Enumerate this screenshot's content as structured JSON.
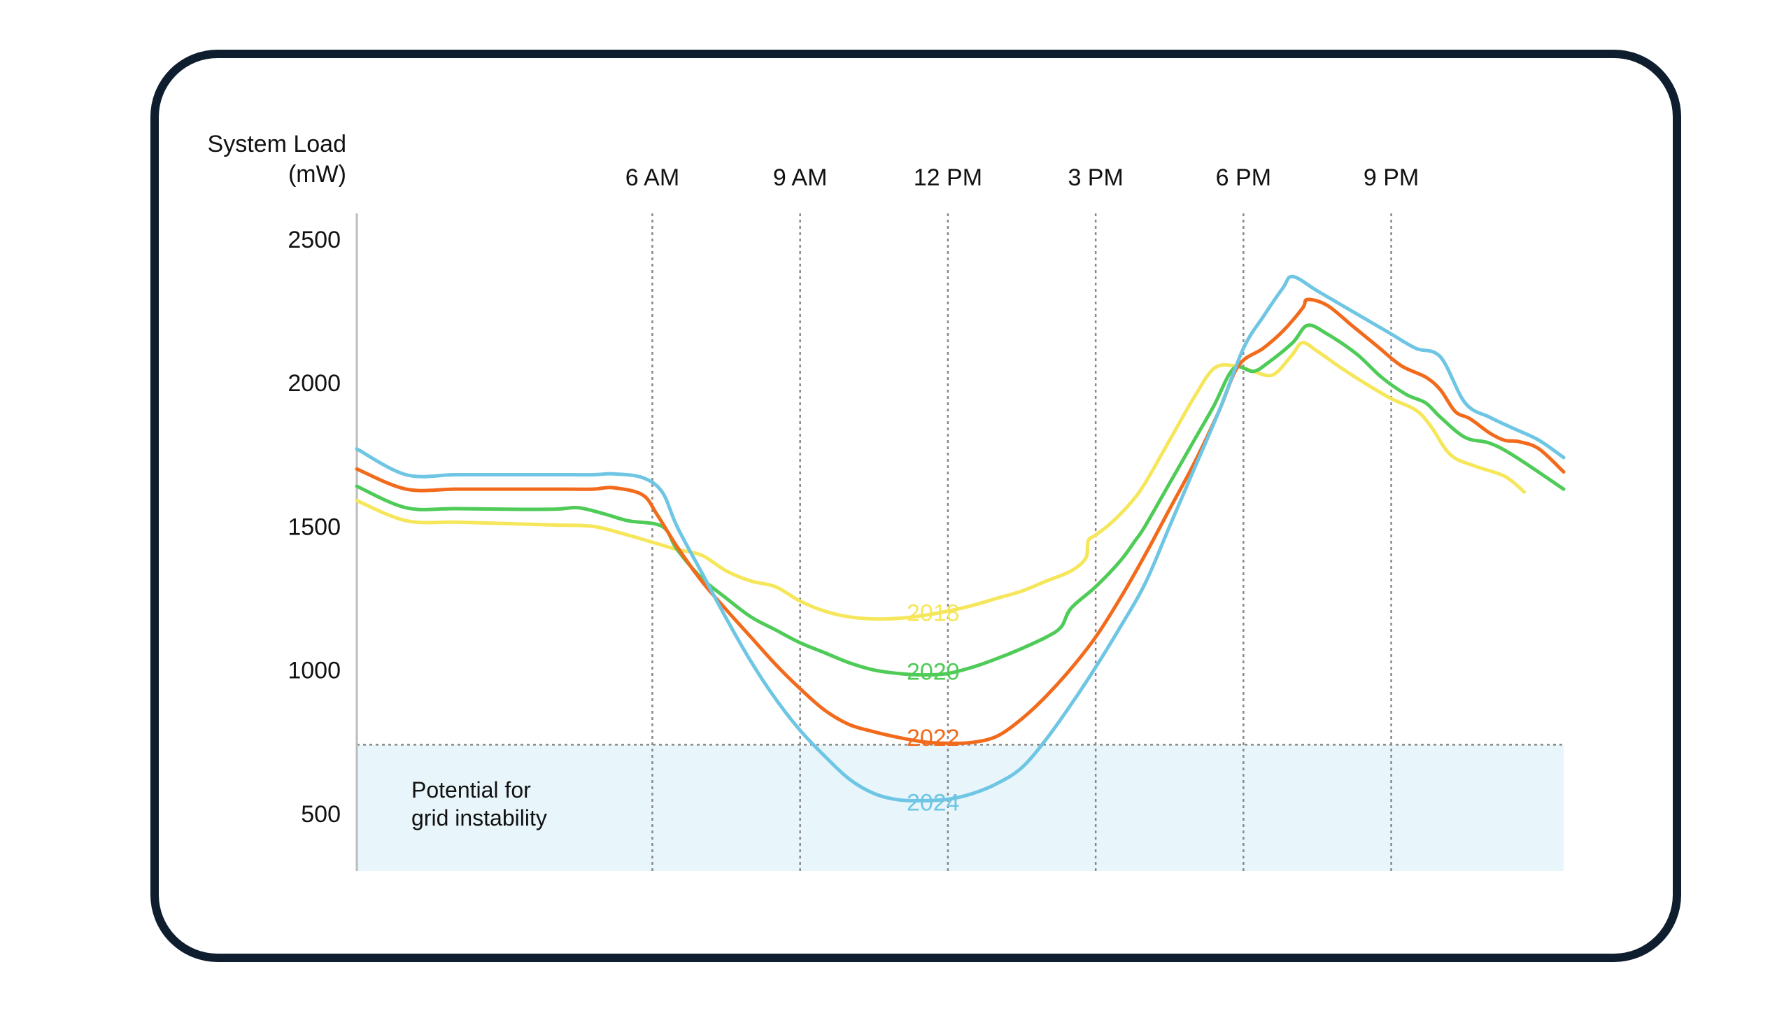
{
  "chart_data": {
    "type": "line",
    "ylabel_line1": "System Load",
    "ylabel_line2": "(mW)",
    "xlabel": "",
    "y_ticks": [
      500,
      1000,
      1500,
      2000,
      2500
    ],
    "y_tick_labels": [
      "500",
      "1000",
      "1500",
      "2000",
      "2500"
    ],
    "ylim": [
      300,
      2590
    ],
    "xlim_hours": [
      0,
      24.5
    ],
    "x_ticks": [
      {
        "hour": 6,
        "label": "6 AM"
      },
      {
        "hour": 9,
        "label": "9 AM"
      },
      {
        "hour": 12,
        "label": "12 PM"
      },
      {
        "hour": 15,
        "label": "3 PM"
      },
      {
        "hour": 18,
        "label": "6 PM"
      },
      {
        "hour": 21,
        "label": "9 PM"
      }
    ],
    "grid": "vertical dotted at x ticks",
    "threshold": {
      "value": 740,
      "label_line1": "Potential for",
      "label_line2": "grid instability",
      "color": "#e8f6fb"
    },
    "colors": {
      "frame": "#0f1e2e",
      "axis": "#bcbcbc",
      "grid": "#888888",
      "text": "#111111"
    },
    "series": [
      {
        "name": "2018",
        "color": "#f5e65a",
        "label_hour": 11.7,
        "label_value": 1200,
        "points": [
          [
            0,
            1590
          ],
          [
            1,
            1520
          ],
          [
            2,
            1515
          ],
          [
            3,
            1510
          ],
          [
            4,
            1505
          ],
          [
            4.8,
            1500
          ],
          [
            5.5,
            1470
          ],
          [
            6,
            1445
          ],
          [
            6.5,
            1420
          ],
          [
            7,
            1400
          ],
          [
            7.5,
            1345
          ],
          [
            8,
            1310
          ],
          [
            8.5,
            1290
          ],
          [
            9,
            1240
          ],
          [
            9.5,
            1205
          ],
          [
            10,
            1185
          ],
          [
            10.5,
            1178
          ],
          [
            11,
            1180
          ],
          [
            11.5,
            1190
          ],
          [
            12,
            1205
          ],
          [
            12.5,
            1225
          ],
          [
            13,
            1250
          ],
          [
            13.5,
            1275
          ],
          [
            14,
            1310
          ],
          [
            14.5,
            1345
          ],
          [
            14.8,
            1390
          ],
          [
            14.85,
            1450
          ],
          [
            15,
            1470
          ],
          [
            15.3,
            1510
          ],
          [
            15.7,
            1580
          ],
          [
            16,
            1650
          ],
          [
            16.5,
            1800
          ],
          [
            17,
            1950
          ],
          [
            17.4,
            2050
          ],
          [
            17.8,
            2060
          ],
          [
            18.2,
            2040
          ],
          [
            18.5,
            2025
          ],
          [
            18.7,
            2040
          ],
          [
            19,
            2100
          ],
          [
            19.2,
            2140
          ],
          [
            19.5,
            2110
          ],
          [
            20,
            2050
          ],
          [
            20.5,
            1995
          ],
          [
            21,
            1945
          ],
          [
            21.5,
            1905
          ],
          [
            21.8,
            1850
          ],
          [
            22.2,
            1750
          ],
          [
            22.7,
            1710
          ],
          [
            23.3,
            1675
          ],
          [
            23.7,
            1620
          ]
        ]
      },
      {
        "name": "2020",
        "color": "#4fcb58",
        "label_hour": 11.7,
        "label_value": 995,
        "points": [
          [
            0,
            1640
          ],
          [
            1,
            1565
          ],
          [
            2,
            1562
          ],
          [
            3,
            1560
          ],
          [
            4,
            1560
          ],
          [
            4.5,
            1565
          ],
          [
            5,
            1545
          ],
          [
            5.5,
            1520
          ],
          [
            6.2,
            1500
          ],
          [
            6.5,
            1420
          ],
          [
            7,
            1320
          ],
          [
            7.5,
            1250
          ],
          [
            8,
            1185
          ],
          [
            8.5,
            1140
          ],
          [
            9,
            1095
          ],
          [
            9.5,
            1060
          ],
          [
            10,
            1025
          ],
          [
            10.5,
            1000
          ],
          [
            11,
            988
          ],
          [
            11.5,
            983
          ],
          [
            12,
            988
          ],
          [
            12.5,
            1010
          ],
          [
            13,
            1040
          ],
          [
            13.5,
            1075
          ],
          [
            14,
            1115
          ],
          [
            14.3,
            1150
          ],
          [
            14.5,
            1215
          ],
          [
            15,
            1290
          ],
          [
            15.5,
            1380
          ],
          [
            15.8,
            1450
          ],
          [
            16,
            1500
          ],
          [
            16.5,
            1650
          ],
          [
            17,
            1800
          ],
          [
            17.4,
            1920
          ],
          [
            17.8,
            2050
          ],
          [
            18.2,
            2040
          ],
          [
            18.5,
            2070
          ],
          [
            19,
            2140
          ],
          [
            19.3,
            2200
          ],
          [
            19.7,
            2170
          ],
          [
            20.3,
            2100
          ],
          [
            20.8,
            2020
          ],
          [
            21.3,
            1960
          ],
          [
            21.7,
            1930
          ],
          [
            22,
            1880
          ],
          [
            22.5,
            1810
          ],
          [
            23,
            1790
          ],
          [
            23.5,
            1745
          ],
          [
            24.5,
            1630
          ]
        ]
      },
      {
        "name": "2022",
        "color": "#f26b1c",
        "label_hour": 11.7,
        "label_value": 765,
        "points": [
          [
            0,
            1700
          ],
          [
            1,
            1630
          ],
          [
            2,
            1630
          ],
          [
            3,
            1630
          ],
          [
            4,
            1630
          ],
          [
            4.8,
            1630
          ],
          [
            5.2,
            1635
          ],
          [
            5.8,
            1610
          ],
          [
            6.1,
            1540
          ],
          [
            6.5,
            1430
          ],
          [
            7,
            1310
          ],
          [
            7.5,
            1210
          ],
          [
            8,
            1115
          ],
          [
            8.5,
            1020
          ],
          [
            9,
            935
          ],
          [
            9.5,
            860
          ],
          [
            10,
            810
          ],
          [
            10.5,
            785
          ],
          [
            11,
            765
          ],
          [
            11.5,
            750
          ],
          [
            12,
            745
          ],
          [
            12.5,
            748
          ],
          [
            13,
            770
          ],
          [
            13.5,
            830
          ],
          [
            14,
            910
          ],
          [
            14.5,
            1005
          ],
          [
            15,
            1115
          ],
          [
            15.5,
            1250
          ],
          [
            16,
            1400
          ],
          [
            16.5,
            1560
          ],
          [
            17,
            1720
          ],
          [
            17.5,
            1900
          ],
          [
            17.9,
            2060
          ],
          [
            18.4,
            2120
          ],
          [
            18.8,
            2180
          ],
          [
            19.2,
            2260
          ],
          [
            19.3,
            2290
          ],
          [
            19.7,
            2270
          ],
          [
            20.2,
            2200
          ],
          [
            20.7,
            2130
          ],
          [
            21.2,
            2060
          ],
          [
            21.7,
            2020
          ],
          [
            22,
            1975
          ],
          [
            22.3,
            1900
          ],
          [
            22.6,
            1875
          ],
          [
            23,
            1825
          ],
          [
            23.3,
            1800
          ],
          [
            23.6,
            1795
          ],
          [
            24,
            1770
          ],
          [
            24.5,
            1690
          ]
        ]
      },
      {
        "name": "2024",
        "color": "#6ec6e4",
        "label_hour": 11.7,
        "label_value": 540,
        "points": [
          [
            0,
            1770
          ],
          [
            1,
            1680
          ],
          [
            2,
            1680
          ],
          [
            3,
            1680
          ],
          [
            4,
            1680
          ],
          [
            4.8,
            1680
          ],
          [
            5.2,
            1683
          ],
          [
            5.8,
            1670
          ],
          [
            6.2,
            1620
          ],
          [
            6.5,
            1500
          ],
          [
            7,
            1340
          ],
          [
            7.5,
            1180
          ],
          [
            8,
            1030
          ],
          [
            8.5,
            900
          ],
          [
            9,
            790
          ],
          [
            9.5,
            700
          ],
          [
            10,
            620
          ],
          [
            10.5,
            570
          ],
          [
            11,
            548
          ],
          [
            11.5,
            545
          ],
          [
            12,
            550
          ],
          [
            12.5,
            570
          ],
          [
            13,
            605
          ],
          [
            13.5,
            660
          ],
          [
            14,
            760
          ],
          [
            14.5,
            880
          ],
          [
            15,
            1010
          ],
          [
            15.5,
            1150
          ],
          [
            16,
            1300
          ],
          [
            16.5,
            1500
          ],
          [
            17,
            1700
          ],
          [
            17.5,
            1900
          ],
          [
            18,
            2120
          ],
          [
            18.4,
            2230
          ],
          [
            18.8,
            2330
          ],
          [
            19,
            2370
          ],
          [
            19.5,
            2320
          ],
          [
            20,
            2270
          ],
          [
            20.5,
            2220
          ],
          [
            21,
            2170
          ],
          [
            21.5,
            2120
          ],
          [
            22,
            2090
          ],
          [
            22.5,
            1930
          ],
          [
            23,
            1880
          ],
          [
            23.5,
            1840
          ],
          [
            24,
            1800
          ],
          [
            24.5,
            1740
          ]
        ]
      }
    ]
  }
}
